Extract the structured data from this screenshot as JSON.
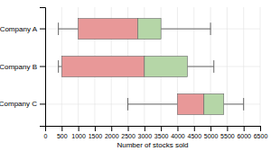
{
  "chart_data": {
    "type": "box",
    "orientation": "horizontal",
    "categories": [
      "Company A",
      "Company B",
      "Company C"
    ],
    "boxes": [
      {
        "whisker_low": 400,
        "q1": 1000,
        "median": 2800,
        "q3": 3500,
        "whisker_high": 5000
      },
      {
        "whisker_low": 400,
        "q1": 500,
        "median": 3000,
        "q3": 4300,
        "whisker_high": 5100
      },
      {
        "whisker_low": 2500,
        "q1": 4000,
        "median": 4800,
        "q3": 5400,
        "whisker_high": 6000
      }
    ],
    "colors": [
      "#e89898",
      "#b5d6a7"
    ],
    "xlim": [
      0,
      6500
    ],
    "xticks": [
      0,
      500,
      1000,
      1500,
      2000,
      2500,
      3000,
      3500,
      4000,
      4500,
      5000,
      5500,
      6000,
      6500
    ],
    "xlabel": "Number of stocks sold",
    "grid": true
  }
}
